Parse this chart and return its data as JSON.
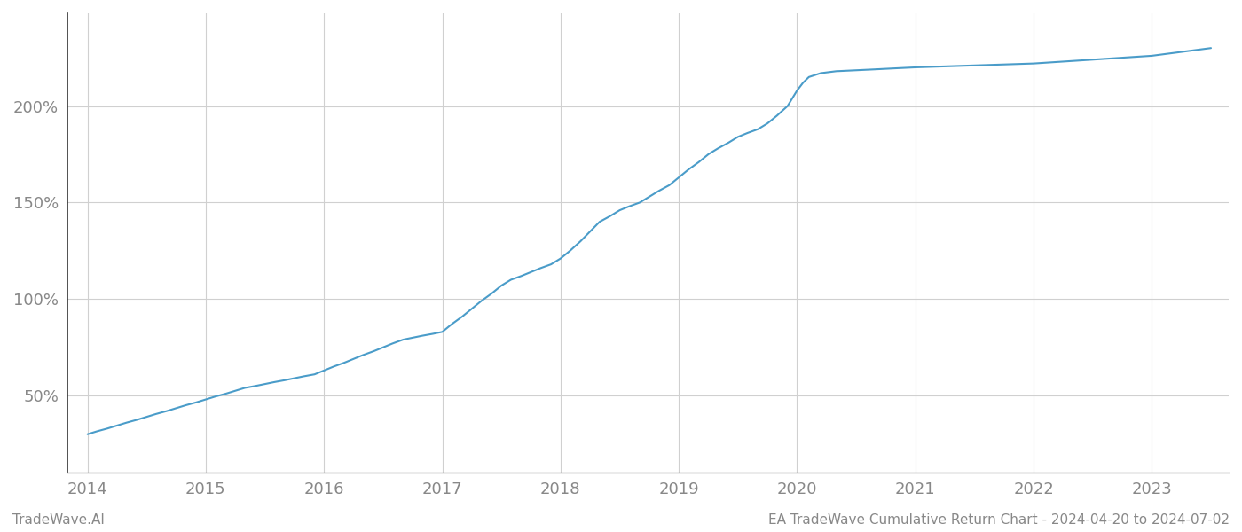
{
  "title": "",
  "footer_left": "TradeWave.AI",
  "footer_right": "EA TradeWave Cumulative Return Chart - 2024-04-20 to 2024-07-02",
  "line_color": "#4a9cc9",
  "background_color": "#ffffff",
  "grid_color": "#d0d0d0",
  "x_years": [
    2014,
    2015,
    2016,
    2017,
    2018,
    2019,
    2020,
    2021,
    2022,
    2023
  ],
  "data_x": [
    2014.0,
    2014.08,
    2014.17,
    2014.25,
    2014.33,
    2014.42,
    2014.5,
    2014.58,
    2014.67,
    2014.75,
    2014.83,
    2014.92,
    2015.0,
    2015.08,
    2015.17,
    2015.25,
    2015.33,
    2015.42,
    2015.5,
    2015.58,
    2015.67,
    2015.75,
    2015.83,
    2015.92,
    2016.0,
    2016.08,
    2016.17,
    2016.25,
    2016.33,
    2016.42,
    2016.5,
    2016.58,
    2016.67,
    2016.75,
    2016.83,
    2016.92,
    2017.0,
    2017.08,
    2017.17,
    2017.25,
    2017.33,
    2017.42,
    2017.5,
    2017.58,
    2017.67,
    2017.75,
    2017.83,
    2017.92,
    2018.0,
    2018.08,
    2018.17,
    2018.25,
    2018.33,
    2018.42,
    2018.5,
    2018.58,
    2018.67,
    2018.75,
    2018.83,
    2018.92,
    2019.0,
    2019.08,
    2019.17,
    2019.25,
    2019.33,
    2019.42,
    2019.5,
    2019.58,
    2019.67,
    2019.75,
    2019.83,
    2019.92,
    2020.0,
    2020.05,
    2020.1,
    2020.15,
    2020.2,
    2020.33,
    2020.5,
    2020.67,
    2020.83,
    2021.0,
    2021.25,
    2021.5,
    2021.75,
    2022.0,
    2022.25,
    2022.5,
    2022.75,
    2023.0,
    2023.25,
    2023.5
  ],
  "data_y": [
    30,
    31.5,
    33,
    34.5,
    36,
    37.5,
    39,
    40.5,
    42,
    43.5,
    45,
    46.5,
    48,
    49.5,
    51,
    52.5,
    54,
    55,
    56,
    57,
    58,
    59,
    60,
    61,
    63,
    65,
    67,
    69,
    71,
    73,
    75,
    77,
    79,
    80,
    81,
    82,
    83,
    87,
    91,
    95,
    99,
    103,
    107,
    110,
    112,
    114,
    116,
    118,
    121,
    125,
    130,
    135,
    140,
    143,
    146,
    148,
    150,
    153,
    156,
    159,
    163,
    167,
    171,
    175,
    178,
    181,
    184,
    186,
    188,
    191,
    195,
    200,
    208,
    212,
    215,
    216,
    217,
    218,
    218.5,
    219,
    219.5,
    220,
    220.5,
    221,
    221.5,
    222,
    223,
    224,
    225,
    226,
    228,
    230
  ],
  "yticks": [
    50,
    100,
    150,
    200
  ],
  "ylim": [
    10,
    248
  ],
  "xlim": [
    2013.83,
    2023.65
  ],
  "left_spine_color": "#333333",
  "bottom_spine_color": "#999999",
  "axis_label_color": "#888888",
  "footer_fontsize": 11,
  "tick_fontsize": 13
}
